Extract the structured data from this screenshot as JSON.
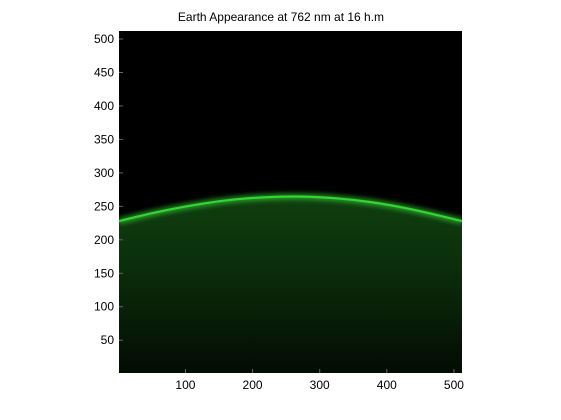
{
  "chart_data": {
    "type": "heatmap",
    "title": "Earth Appearance at 762 nm at 16 h.m",
    "xlabel": "",
    "ylabel": "",
    "xlim": [
      1,
      512
    ],
    "ylim": [
      1,
      512
    ],
    "x_ticks": [
      100,
      200,
      300,
      400,
      500
    ],
    "y_ticks": [
      50,
      100,
      150,
      200,
      250,
      300,
      350,
      400,
      450,
      500
    ],
    "background_color": "#000000",
    "limb_color": "#33d633",
    "disk_color": "#0d3a0d",
    "limb_profile": {
      "x": [
        1,
        50,
        100,
        150,
        200,
        256,
        300,
        350,
        400,
        450,
        512
      ],
      "y": [
        228,
        240,
        250,
        258,
        263,
        265,
        264,
        260,
        253,
        243,
        228
      ]
    },
    "grid": false,
    "legend": "none"
  }
}
